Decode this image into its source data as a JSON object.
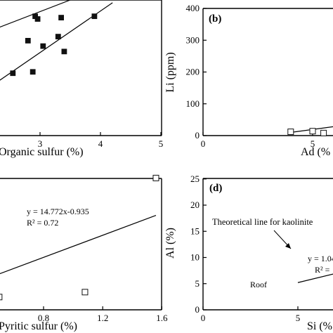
{
  "chart_data": [
    {
      "type": "scatter",
      "panel": "",
      "xlabel": "Organic sulfur (%)",
      "ylabel": "",
      "xlim": [
        0.7,
        5
      ],
      "ylim": [
        0,
        10
      ],
      "xticks": [
        "2",
        "3",
        "4",
        "5"
      ],
      "yticks": [],
      "series": [
        {
          "marker": "filled-square",
          "points": [
            [
              0.7,
              7.7
            ],
            [
              0.85,
              4.8
            ],
            [
              0.98,
              3.3
            ],
            [
              1.25,
              1.7
            ],
            [
              2.55,
              4.6
            ],
            [
              2.8,
              7.0
            ],
            [
              2.88,
              4.7
            ],
            [
              2.92,
              8.8
            ],
            [
              2.96,
              8.6
            ],
            [
              3.05,
              6.6
            ],
            [
              3.3,
              7.3
            ],
            [
              3.35,
              8.7
            ],
            [
              3.4,
              6.2
            ],
            [
              3.9,
              8.8
            ]
          ]
        }
      ],
      "lines": [
        {
          "kind": "upper-bound",
          "x": [
            0.7,
            3.5
          ],
          "y": [
            5.2,
            10
          ]
        },
        {
          "kind": "lower-bound",
          "x": [
            1.0,
            4.2
          ],
          "y": [
            0.0,
            9.8
          ]
        }
      ]
    },
    {
      "type": "scatter",
      "panel": "(b)",
      "xlabel": "Ad (%",
      "ylabel": "Li (ppm)",
      "xlim": [
        0,
        18
      ],
      "ylim": [
        0,
        400
      ],
      "xticks": [
        "0",
        "5",
        "10",
        "15"
      ],
      "yticks": [
        "0",
        "100",
        "200",
        "300",
        "400"
      ],
      "series": [
        {
          "marker": "open-square",
          "points": [
            [
              4.0,
              12
            ],
            [
              5.0,
              14
            ],
            [
              5.5,
              8
            ],
            [
              6.5,
              50
            ],
            [
              6.5,
              36
            ],
            [
              11.0,
              110
            ],
            [
              12.4,
              116
            ],
            [
              12.6,
              68
            ],
            [
              13.0,
              78
            ],
            [
              15.0,
              54
            ]
          ]
        }
      ],
      "lines": [
        {
          "kind": "fit",
          "x": [
            4.0,
            18.0
          ],
          "y": [
            10,
            140
          ]
        }
      ]
    },
    {
      "type": "scatter",
      "panel": "",
      "xlabel": "Pyritic sulfur (%)",
      "ylabel": "",
      "xlim": [
        0.42,
        1.62
      ],
      "ylim": [
        0,
        7
      ],
      "xticks": [
        "0.8",
        "1.2",
        "1.6"
      ],
      "yticks": [],
      "annotations": [
        "y = 14.772x-0.935",
        "R² = 0.72"
      ],
      "series": [
        {
          "marker": "open-square",
          "points": [
            [
              0.5,
              0.65
            ],
            [
              1.08,
              0.9
            ],
            [
              1.56,
              6.7
            ]
          ]
        }
      ],
      "lines": [
        {
          "kind": "fit",
          "x": [
            0.42,
            1.56
          ],
          "y": [
            1.6,
            4.8
          ]
        }
      ]
    },
    {
      "type": "scatter",
      "panel": "(d)",
      "xlabel": "Si (%",
      "ylabel": "Al (%)",
      "xlim": [
        0,
        15
      ],
      "ylim": [
        0,
        25
      ],
      "xticks": [
        "0",
        "5",
        "10"
      ],
      "yticks": [
        "0",
        "5",
        "10",
        "15",
        "20",
        "25"
      ],
      "annotations": [
        "Theoretical line for kaolinite",
        "y = 1.04",
        "R² =",
        "Roof"
      ],
      "series": [
        {
          "name": "Roof",
          "marker": "filled-square",
          "points": [
            [
              8.3,
              5.0
            ]
          ]
        },
        {
          "marker": "open-square",
          "points": [
            [
              9.9,
              10.2
            ],
            [
              10.2,
              10.5
            ]
          ]
        }
      ],
      "lines": [
        {
          "kind": "fit",
          "style": "solid",
          "x": [
            5.0,
            15.0
          ],
          "y": [
            5.2,
            14.0
          ]
        },
        {
          "kind": "theoretical",
          "style": "dashed",
          "x": [
            7.5,
            15.0
          ],
          "y": [
            7.3,
            14.6
          ]
        }
      ]
    }
  ]
}
